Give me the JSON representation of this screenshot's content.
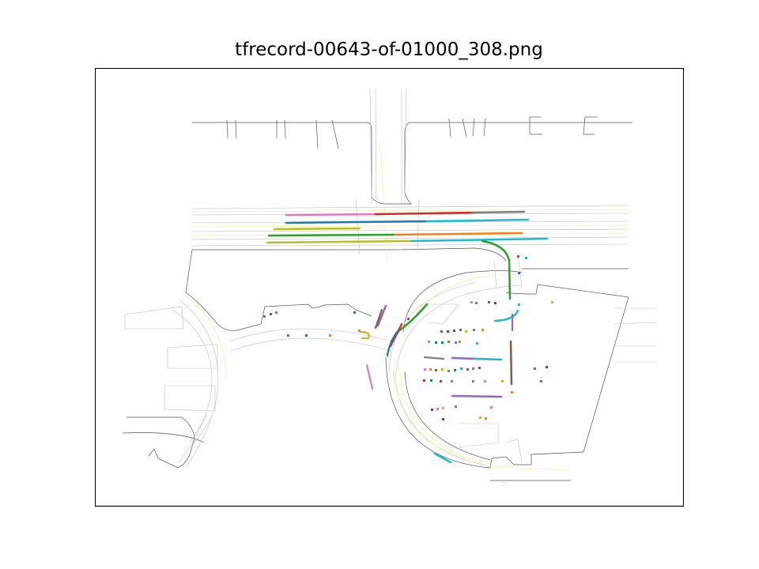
{
  "figure": {
    "title": "tfrecord-00643-of-01000_308.png"
  },
  "colors": {
    "road_edge": "#555555",
    "lane_line": "#b8b8b8",
    "center_line": "#f2ee9a",
    "agent_palette": [
      "#1f77b4",
      "#ff7f0e",
      "#2ca02c",
      "#d62728",
      "#9467bd",
      "#8c564b",
      "#e377c2",
      "#7f7f7f",
      "#bcbd22",
      "#17becf"
    ]
  }
}
